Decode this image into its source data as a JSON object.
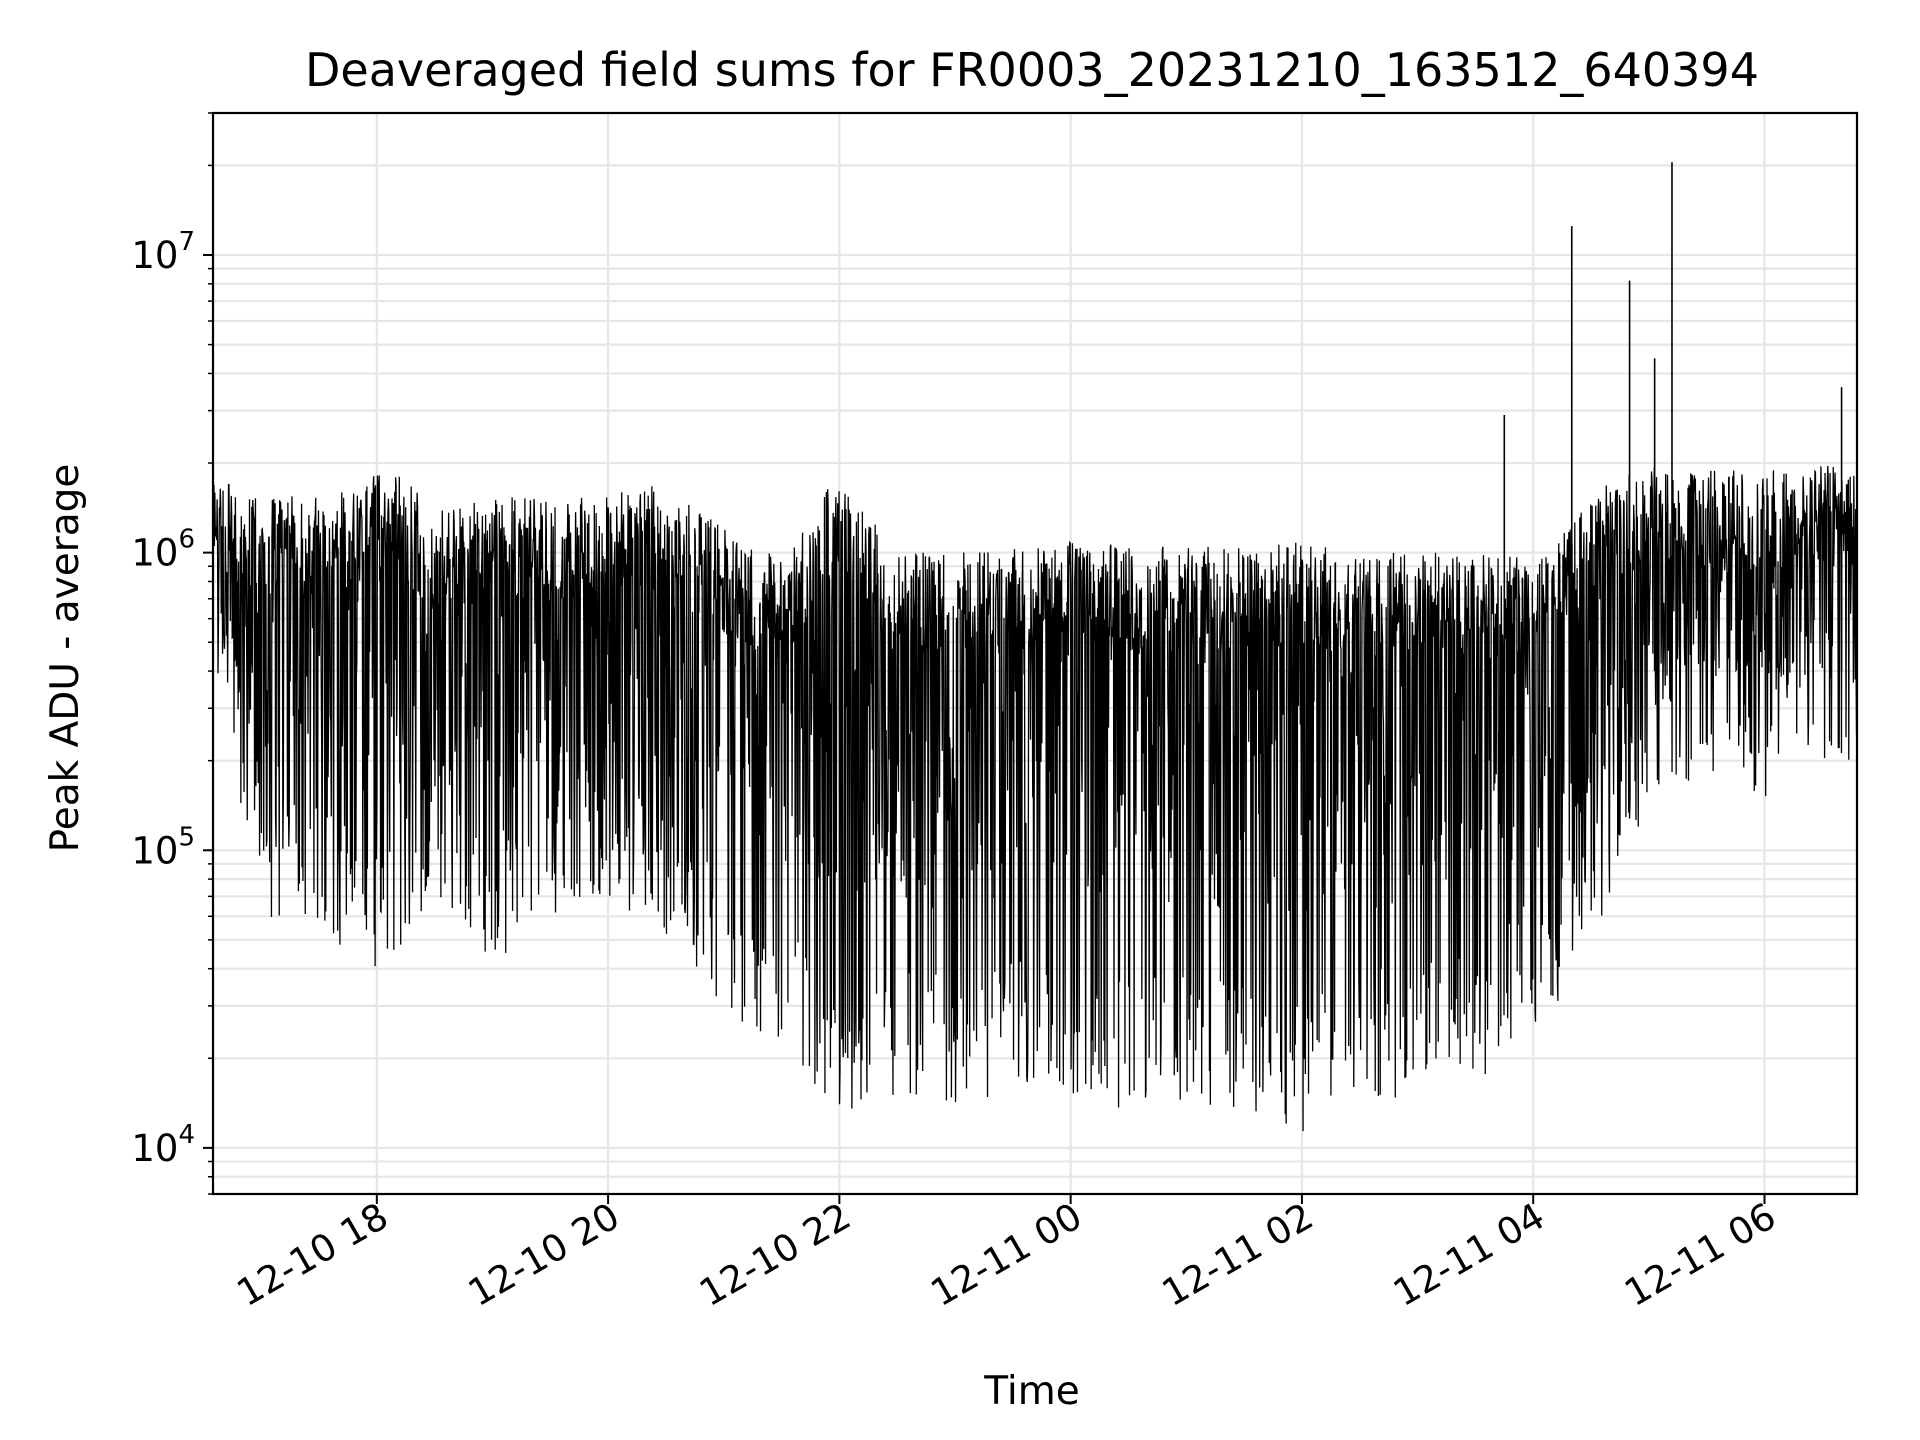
{
  "chart_data": {
    "type": "line",
    "title": "Deaveraged field sums for FR0003_20231210_163512_640394",
    "xlabel": "Time",
    "ylabel": "Peak ADU - average",
    "yscale": "log",
    "grid": true,
    "xlim": [
      "2023-12-10 16:35",
      "2023-12-11 06:48"
    ],
    "ylim": [
      7000,
      30000000
    ],
    "x_ticks": [
      {
        "t": "2023-12-10 18:00",
        "label": "12-10 18"
      },
      {
        "t": "2023-12-10 20:00",
        "label": "12-10 20"
      },
      {
        "t": "2023-12-10 22:00",
        "label": "12-10 22"
      },
      {
        "t": "2023-12-11 00:00",
        "label": "12-11 00"
      },
      {
        "t": "2023-12-11 02:00",
        "label": "12-11 02"
      },
      {
        "t": "2023-12-11 04:00",
        "label": "12-11 04"
      },
      {
        "t": "2023-12-11 06:00",
        "label": "12-11 06"
      }
    ],
    "y_ticks": [
      {
        "value": 10000,
        "base": "10",
        "exp": "4"
      },
      {
        "value": 100000,
        "base": "10",
        "exp": "5"
      },
      {
        "value": 1000000,
        "base": "10",
        "exp": "6"
      },
      {
        "value": 10000000,
        "base": "10",
        "exp": "7"
      }
    ],
    "line_color": "#000000",
    "grid_color": "#e6e6e6",
    "series": [
      {
        "x": [
          "2023-12-10 16:35",
          "2023-12-10 17:00",
          "2023-12-10 17:30",
          "2023-12-10 17:55",
          "2023-12-10 18:00",
          "2023-12-10 18:30",
          "2023-12-10 19:00",
          "2023-12-10 19:30",
          "2023-12-10 20:00",
          "2023-12-10 20:30",
          "2023-12-10 21:00",
          "2023-12-10 21:30",
          "2023-12-10 22:00",
          "2023-12-10 22:30",
          "2023-12-10 23:00",
          "2023-12-10 23:30",
          "2023-12-11 00:00",
          "2023-12-11 00:30",
          "2023-12-11 01:00",
          "2023-12-11 01:30",
          "2023-12-11 02:00",
          "2023-12-11 02:30",
          "2023-12-11 03:00",
          "2023-12-11 03:30",
          "2023-12-11 04:00",
          "2023-12-11 04:30",
          "2023-12-11 05:00",
          "2023-12-11 05:30",
          "2023-12-11 06:00",
          "2023-12-11 06:30",
          "2023-12-11 06:48"
        ],
        "envelope_max": [
          1800000,
          1500000,
          1600000,
          1700000,
          2200000,
          1400000,
          1600000,
          1500000,
          1600000,
          1700000,
          1200000,
          950000,
          1900000,
          1000000,
          1000000,
          1050000,
          1100000,
          1050000,
          1050000,
          1050000,
          1100000,
          1000000,
          1000000,
          1000000,
          950000,
          1600000,
          2000000,
          1900000,
          1900000,
          2000000,
          2000000
        ],
        "envelope_min": [
          400000,
          60000,
          50000,
          40000,
          35000,
          70000,
          40000,
          60000,
          70000,
          50000,
          30000,
          20000,
          13000,
          15000,
          14000,
          15000,
          15000,
          13000,
          14000,
          13000,
          11000,
          14000,
          15000,
          16000,
          25000,
          40000,
          150000,
          180000,
          150000,
          200000,
          200000
        ],
        "spikes": [
          {
            "t": "2023-12-11 03:45",
            "value": 2900000
          },
          {
            "t": "2023-12-11 04:20",
            "value": 12500000
          },
          {
            "t": "2023-12-11 04:50",
            "value": 8200000
          },
          {
            "t": "2023-12-11 05:03",
            "value": 4500000
          },
          {
            "t": "2023-12-11 05:12",
            "value": 20500000
          },
          {
            "t": "2023-12-11 06:40",
            "value": 3600000
          }
        ]
      }
    ]
  }
}
